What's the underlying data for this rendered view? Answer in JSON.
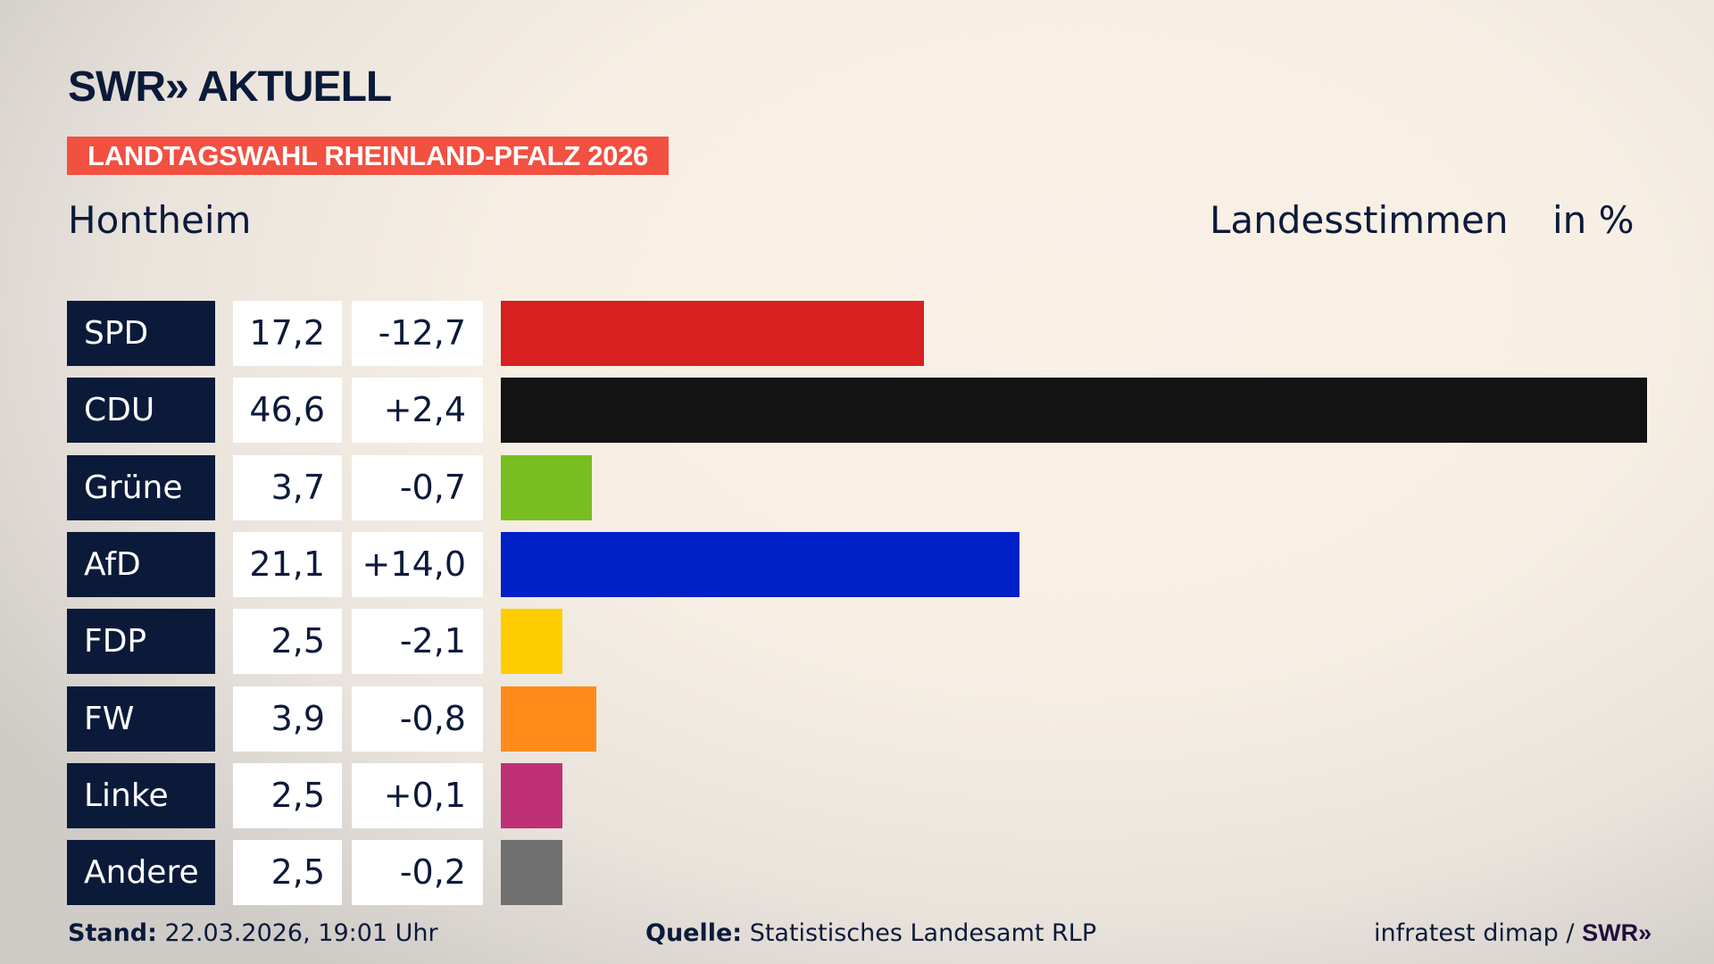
{
  "header": {
    "logo": "SWR» AKTUELL",
    "banner": "LANDTAGSWAHL RHEINLAND-PFALZ 2026",
    "place": "Hontheim",
    "measure": "Landesstimmen",
    "unit": "in %"
  },
  "chart_data": {
    "type": "bar",
    "orientation": "horizontal",
    "categories": [
      "SPD",
      "CDU",
      "Grüne",
      "AfD",
      "FDP",
      "FW",
      "Linke",
      "Andere"
    ],
    "values": [
      17.2,
      46.6,
      3.7,
      21.1,
      2.5,
      3.9,
      2.5,
      2.5
    ],
    "value_labels": [
      "17,2",
      "46,6",
      "3,7",
      "21,1",
      "2,5",
      "3,9",
      "2,5",
      "2,5"
    ],
    "diff_labels": [
      "-12,7",
      "+2,4",
      "-0,7",
      "+14,0",
      "-2,1",
      "-0,8",
      "+0,1",
      "-0,2"
    ],
    "diffs": [
      -12.7,
      2.4,
      -0.7,
      14.0,
      -2.1,
      -0.8,
      0.1,
      -0.2
    ],
    "colors": [
      "#d7201f",
      "#131313",
      "#78be20",
      "#0021c8",
      "#ffcc00",
      "#ff8c1a",
      "#be3075",
      "#707070"
    ],
    "grid": false
  },
  "footer": {
    "stand_label": "Stand:",
    "stand_value": "22.03.2026, 19:01 Uhr",
    "source_label": "Quelle:",
    "source_value": "Statistisches Landesamt RLP",
    "credit": "infratest dimap / ",
    "credit_logo": "SWR»"
  }
}
